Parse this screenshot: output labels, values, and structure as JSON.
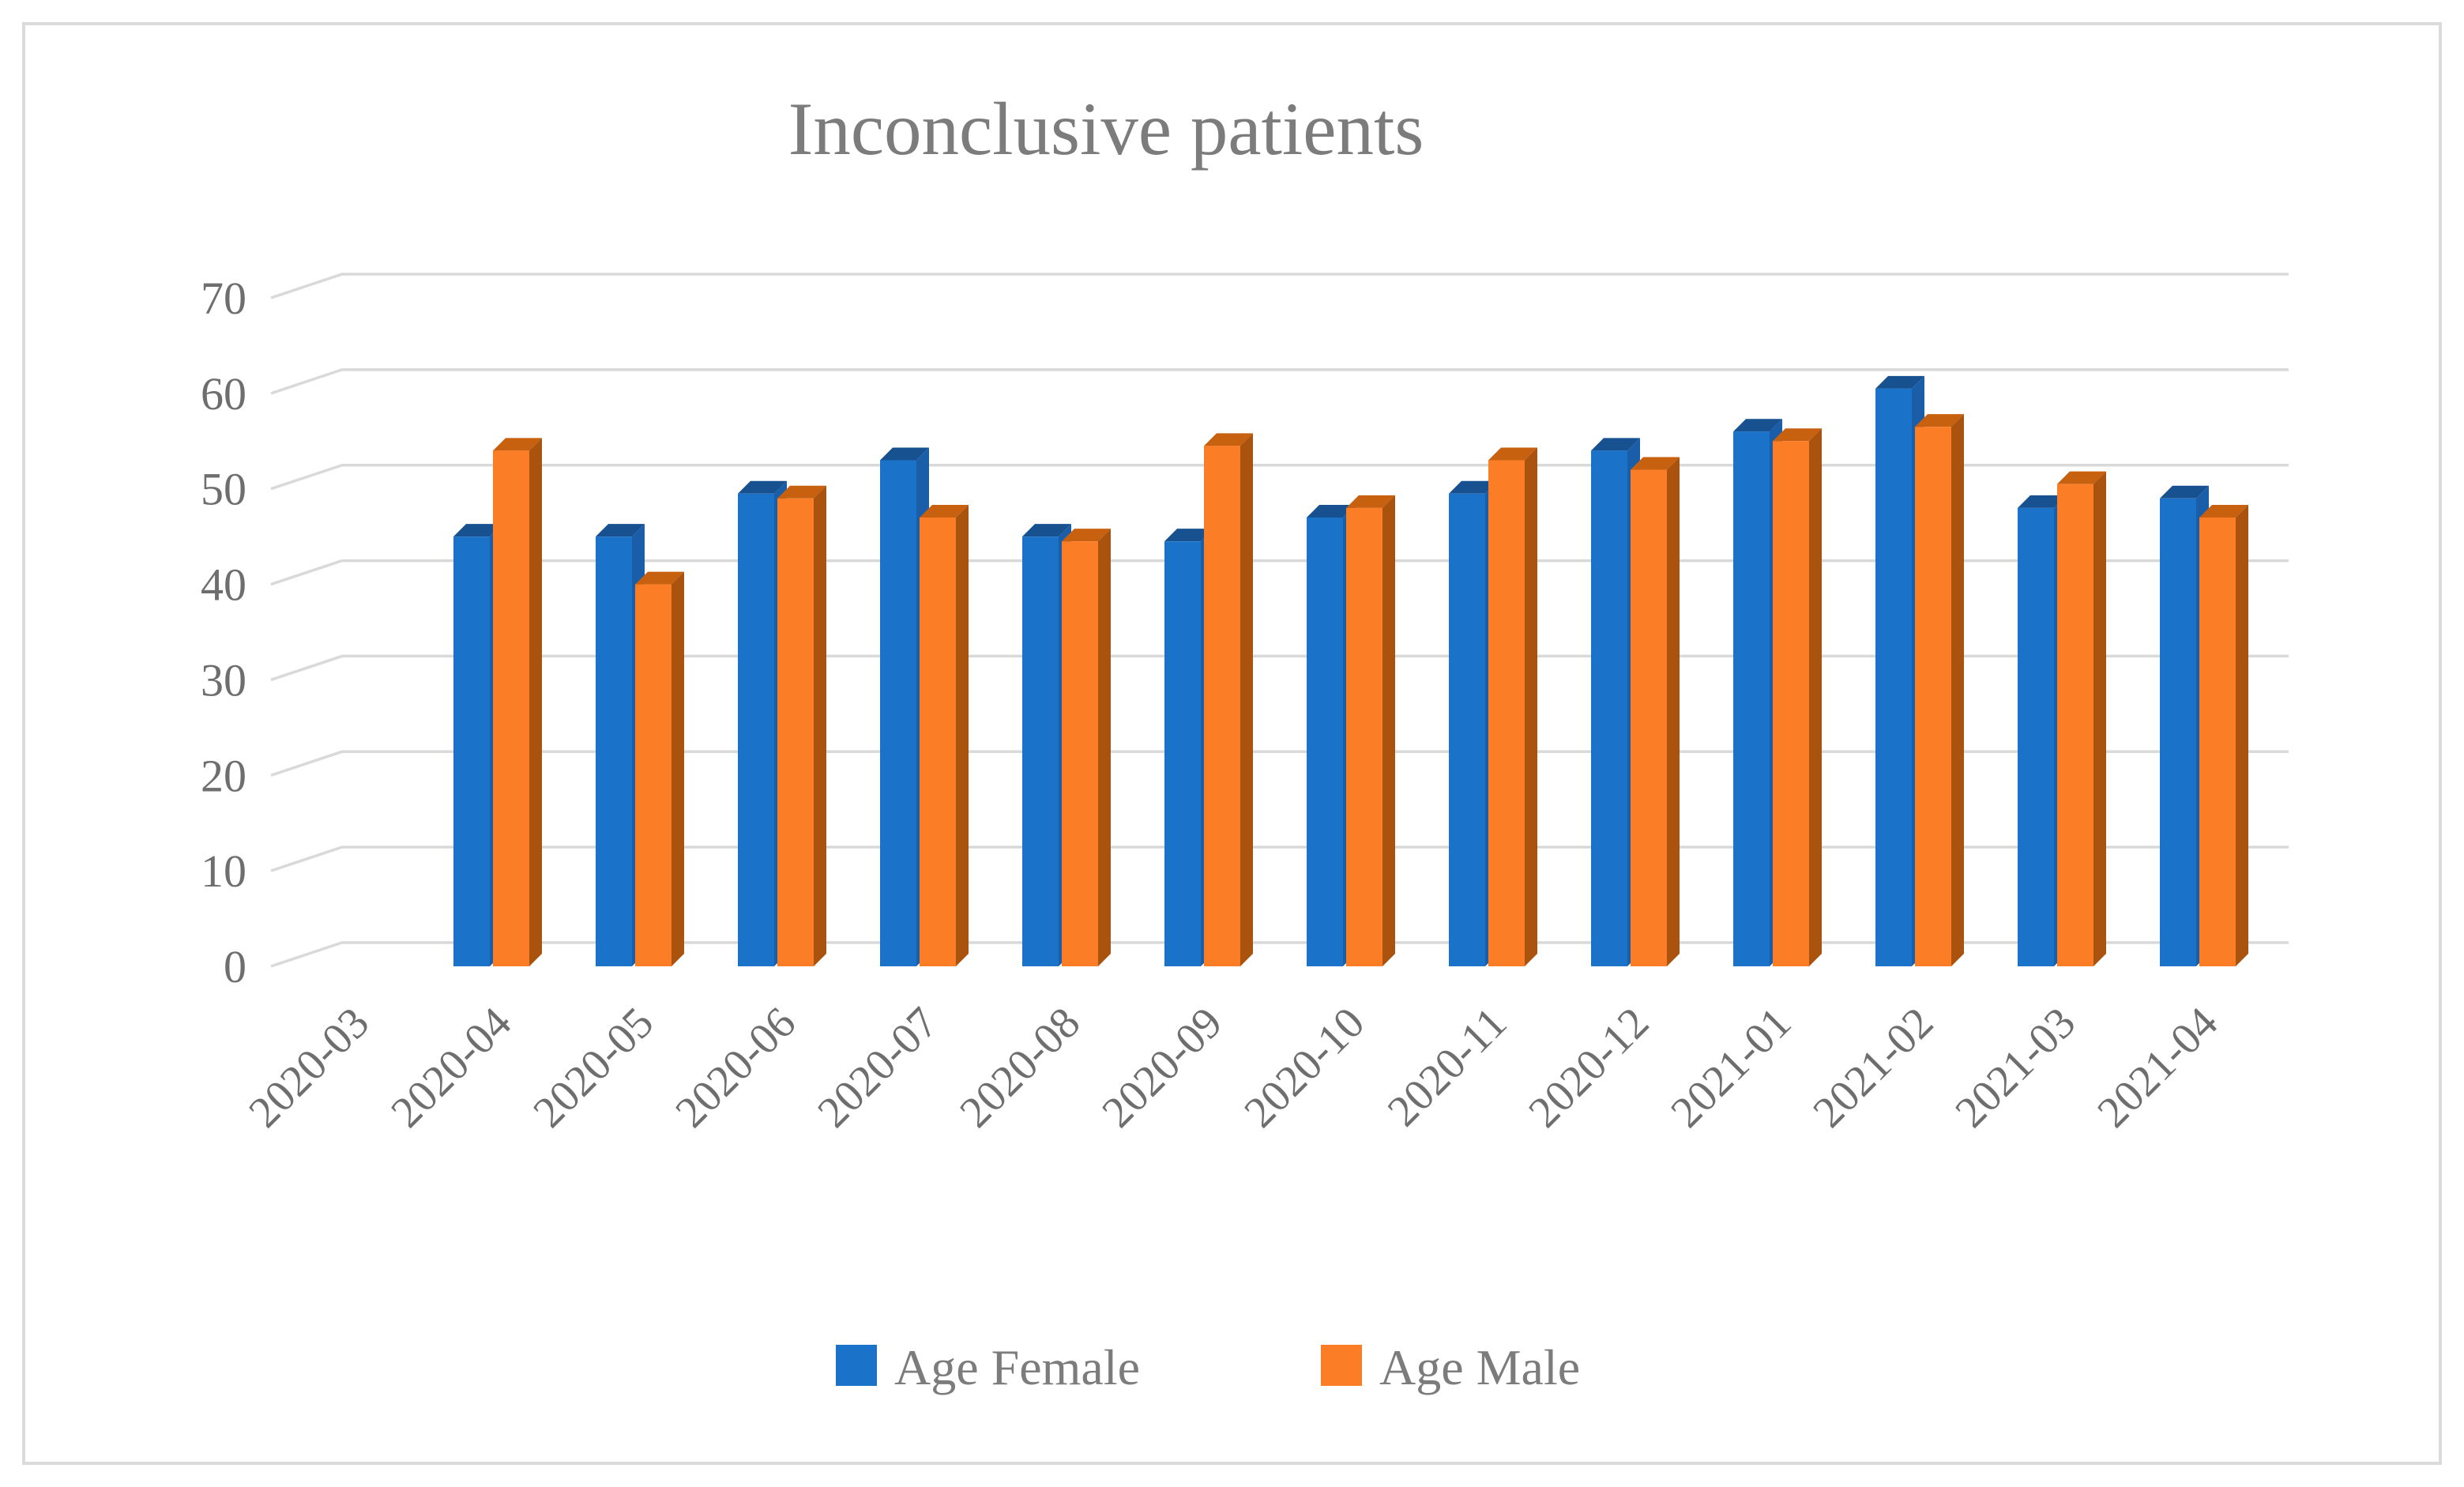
{
  "figure": {
    "background": "#FFFFFF",
    "border_color": "#DBDBDB"
  },
  "chart_data": {
    "type": "bar",
    "style": "3d-clustered-column",
    "title": "Inconclusive patients",
    "title_color": "#7C7C7C",
    "axis_text_color": "#6E6E6E",
    "gridline_color": "#D9D9D9",
    "grid": true,
    "legend_position": "bottom",
    "xlabel": "",
    "ylabel": "",
    "ylim": [
      0,
      70
    ],
    "ytick_step": 10,
    "yticks": [
      0,
      10,
      20,
      30,
      40,
      50,
      60,
      70
    ],
    "categories": [
      "2020-03",
      "2020-04",
      "2020-05",
      "2020-06",
      "2020-07",
      "2020-08",
      "2020-09",
      "2020-10",
      "2020-11",
      "2020-12",
      "2021-01",
      "2021-02",
      "2021-03",
      "2021-04"
    ],
    "series": [
      {
        "name": "Age Female",
        "color": "#1B72C9",
        "color_top": "#17518F",
        "color_side": "#1A5DA9",
        "values": [
          null,
          45,
          45,
          49.5,
          53,
          45,
          44.5,
          47,
          49.5,
          54,
          56,
          60.5,
          48,
          49
        ]
      },
      {
        "name": "Age Male",
        "color": "#FB7D26",
        "color_top": "#C7600F",
        "color_side": "#A9530F",
        "values": [
          null,
          54,
          40,
          49,
          47,
          44.5,
          54.5,
          48,
          53,
          52,
          55,
          56.5,
          50.5,
          47
        ]
      }
    ]
  }
}
